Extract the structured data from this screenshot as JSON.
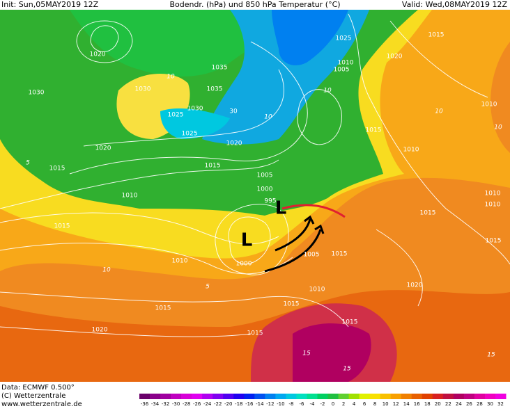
{
  "header": {
    "init": "Init: Sun,05MAY2019 12Z",
    "title": "Bodendr. (hPa) und 850 hPa Temperatur (°C)",
    "valid": "Valid: Wed,08MAY2019 12Z"
  },
  "footer": {
    "data": "Data: ECMWF  0.500°",
    "copyright": "(C) Wetterzentrale",
    "url": "www.wetterzentrale.de"
  },
  "map": {
    "low_marker": "L",
    "isobar_labels": [
      "1020",
      "1030",
      "1030",
      "1025",
      "1030",
      "1035",
      "1035",
      "1025",
      "30",
      "1020",
      "1015",
      "1010",
      "1015",
      "1005",
      "1000",
      "995",
      "1000",
      "1005",
      "1015",
      "1010",
      "1010",
      "1015",
      "1020",
      "1025",
      "1010",
      "1005",
      "1015",
      "1020",
      "1010",
      "1010",
      "1010",
      "1015",
      "1015",
      "1015",
      "1020",
      "1015",
      "1015",
      "1010",
      "1015",
      "1020",
      "1015"
    ],
    "temperature_labels": [
      "10",
      "10",
      "5",
      "10",
      "10",
      "10",
      "15",
      "10",
      "5",
      "15",
      "15"
    ]
  },
  "colorbar": {
    "labels": [
      -36,
      -34,
      -32,
      -30,
      -28,
      -26,
      -24,
      -22,
      -20,
      -18,
      -16,
      -14,
      -12,
      -10,
      -8,
      -6,
      -4,
      -2,
      0,
      2,
      4,
      6,
      8,
      10,
      12,
      14,
      16,
      18,
      20,
      22,
      24,
      26,
      28,
      30,
      32
    ],
    "colors": [
      "#6a006a",
      "#8a008a",
      "#a000a0",
      "#c000c0",
      "#d800d8",
      "#e000f0",
      "#b000f0",
      "#8000f0",
      "#5000f0",
      "#2000f0",
      "#0020f0",
      "#0050f0",
      "#0080f0",
      "#00a8f0",
      "#00c8e0",
      "#00e0c0",
      "#00e090",
      "#00d060",
      "#20c040",
      "#60d030",
      "#a0e000",
      "#e0f000",
      "#f8e000",
      "#f8c000",
      "#f8a000",
      "#f08000",
      "#e86000",
      "#e04000",
      "#d82020",
      "#c01040",
      "#b00060",
      "#c00080",
      "#e000a0",
      "#f000c0",
      "#f000e0"
    ]
  }
}
